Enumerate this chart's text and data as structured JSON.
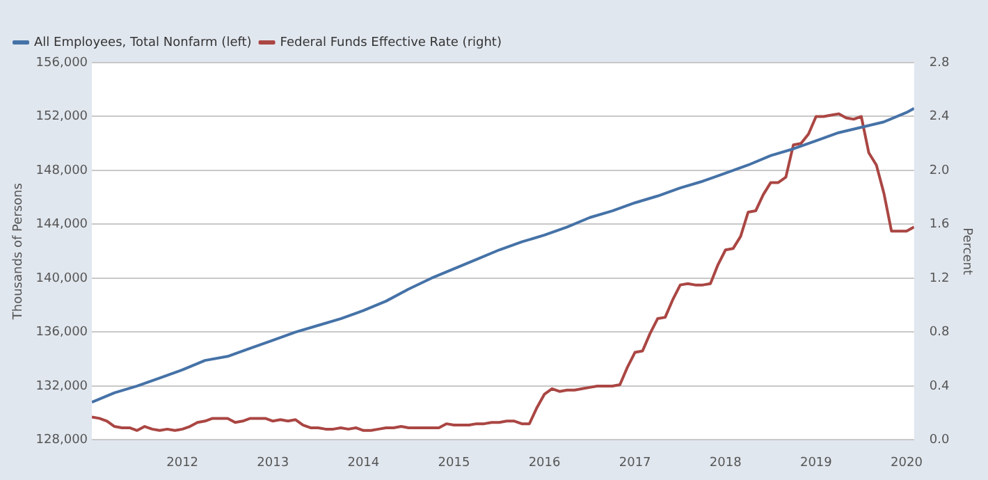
{
  "chart_data": {
    "type": "line",
    "ylabel": "Thousands of Persons",
    "y2label": "Percent",
    "xlim": [
      "2011-01",
      "2020-02"
    ],
    "xticks": [
      {
        "value": "2012",
        "label": "2012"
      },
      {
        "value": "2013",
        "label": "2013"
      },
      {
        "value": "2014",
        "label": "2014"
      },
      {
        "value": "2015",
        "label": "2015"
      },
      {
        "value": "2016",
        "label": "2016"
      },
      {
        "value": "2017",
        "label": "2017"
      },
      {
        "value": "2018",
        "label": "2018"
      },
      {
        "value": "2019",
        "label": "2019"
      },
      {
        "value": "2020",
        "label": "2020"
      }
    ],
    "ylim": [
      128000,
      156000
    ],
    "yticks": [
      {
        "value": 128000,
        "label": "128,000"
      },
      {
        "value": 132000,
        "label": "132,000"
      },
      {
        "value": 136000,
        "label": "136,000"
      },
      {
        "value": 140000,
        "label": "140,000"
      },
      {
        "value": 144000,
        "label": "144,000"
      },
      {
        "value": 148000,
        "label": "148,000"
      },
      {
        "value": 152000,
        "label": "152,000"
      },
      {
        "value": 156000,
        "label": "156,000"
      }
    ],
    "y2lim": [
      0,
      2.8
    ],
    "y2ticks": [
      {
        "value": 0,
        "label": "0.0"
      },
      {
        "value": 0.4,
        "label": "0.4"
      },
      {
        "value": 0.8,
        "label": "0.8"
      },
      {
        "value": 1.2,
        "label": "1.2"
      },
      {
        "value": 1.6,
        "label": "1.6"
      },
      {
        "value": 2.0,
        "label": "2.0"
      },
      {
        "value": 2.4,
        "label": "2.4"
      },
      {
        "value": 2.8,
        "label": "2.8"
      }
    ],
    "grid": "y",
    "legend": "top left",
    "marker": "none",
    "line_style": "solid",
    "series": [
      {
        "name": "All Employees, Total Nonfarm (left)",
        "color": "#4572a7",
        "x": [
          "2011-01",
          "2011-04",
          "2011-07",
          "2011-10",
          "2012-01",
          "2012-04",
          "2012-07",
          "2012-10",
          "2013-01",
          "2013-04",
          "2013-07",
          "2013-10",
          "2014-01",
          "2014-04",
          "2014-07",
          "2014-10",
          "2015-01",
          "2015-04",
          "2015-07",
          "2015-10",
          "2016-01",
          "2016-04",
          "2016-07",
          "2016-10",
          "2017-01",
          "2017-04",
          "2017-07",
          "2017-10",
          "2018-01",
          "2018-04",
          "2018-07",
          "2018-10",
          "2019-01",
          "2019-04",
          "2019-07",
          "2019-10",
          "2020-01",
          "2020-02"
        ],
        "values": [
          130800,
          131500,
          132000,
          132600,
          133200,
          133900,
          134200,
          134800,
          135400,
          136000,
          136500,
          137000,
          137600,
          138300,
          139200,
          140000,
          140700,
          141400,
          142100,
          142700,
          143200,
          143800,
          144500,
          145000,
          145600,
          146100,
          146700,
          147200,
          147800,
          148400,
          149100,
          149600,
          150200,
          150800,
          151200,
          151600,
          152300,
          152600
        ]
      },
      {
        "name": "Federal Funds Effective Rate (right)",
        "color": "#aa4643",
        "axis": "y2",
        "x": [
          "2011-01",
          "2011-02",
          "2011-03",
          "2011-04",
          "2011-05",
          "2011-06",
          "2011-07",
          "2011-08",
          "2011-09",
          "2011-10",
          "2011-11",
          "2011-12",
          "2012-01",
          "2012-02",
          "2012-03",
          "2012-04",
          "2012-05",
          "2012-06",
          "2012-07",
          "2012-08",
          "2012-09",
          "2012-10",
          "2012-11",
          "2012-12",
          "2013-01",
          "2013-02",
          "2013-03",
          "2013-04",
          "2013-05",
          "2013-06",
          "2013-07",
          "2013-08",
          "2013-09",
          "2013-10",
          "2013-11",
          "2013-12",
          "2014-01",
          "2014-02",
          "2014-03",
          "2014-04",
          "2014-05",
          "2014-06",
          "2014-07",
          "2014-08",
          "2014-09",
          "2014-10",
          "2014-11",
          "2014-12",
          "2015-01",
          "2015-02",
          "2015-03",
          "2015-04",
          "2015-05",
          "2015-06",
          "2015-07",
          "2015-08",
          "2015-09",
          "2015-10",
          "2015-11",
          "2015-12",
          "2016-01",
          "2016-02",
          "2016-03",
          "2016-04",
          "2016-05",
          "2016-06",
          "2016-07",
          "2016-08",
          "2016-09",
          "2016-10",
          "2016-11",
          "2016-12",
          "2017-01",
          "2017-02",
          "2017-03",
          "2017-04",
          "2017-05",
          "2017-06",
          "2017-07",
          "2017-08",
          "2017-09",
          "2017-10",
          "2017-11",
          "2017-12",
          "2018-01",
          "2018-02",
          "2018-03",
          "2018-04",
          "2018-05",
          "2018-06",
          "2018-07",
          "2018-08",
          "2018-09",
          "2018-10",
          "2018-11",
          "2018-12",
          "2019-01",
          "2019-02",
          "2019-03",
          "2019-04",
          "2019-05",
          "2019-06",
          "2019-07",
          "2019-08",
          "2019-09",
          "2019-10",
          "2019-11",
          "2019-12",
          "2020-01",
          "2020-02"
        ],
        "values": [
          0.17,
          0.16,
          0.14,
          0.1,
          0.09,
          0.09,
          0.07,
          0.1,
          0.08,
          0.07,
          0.08,
          0.07,
          0.08,
          0.1,
          0.13,
          0.14,
          0.16,
          0.16,
          0.16,
          0.13,
          0.14,
          0.16,
          0.16,
          0.16,
          0.14,
          0.15,
          0.14,
          0.15,
          0.11,
          0.09,
          0.09,
          0.08,
          0.08,
          0.09,
          0.08,
          0.09,
          0.07,
          0.07,
          0.08,
          0.09,
          0.09,
          0.1,
          0.09,
          0.09,
          0.09,
          0.09,
          0.09,
          0.12,
          0.11,
          0.11,
          0.11,
          0.12,
          0.12,
          0.13,
          0.13,
          0.14,
          0.14,
          0.12,
          0.12,
          0.24,
          0.34,
          0.38,
          0.36,
          0.37,
          0.37,
          0.38,
          0.39,
          0.4,
          0.4,
          0.4,
          0.41,
          0.54,
          0.65,
          0.66,
          0.79,
          0.9,
          0.91,
          1.04,
          1.15,
          1.16,
          1.15,
          1.15,
          1.16,
          1.3,
          1.41,
          1.42,
          1.51,
          1.69,
          1.7,
          1.82,
          1.91,
          1.91,
          1.95,
          2.19,
          2.2,
          2.27,
          2.4,
          2.4,
          2.41,
          2.42,
          2.39,
          2.38,
          2.4,
          2.13,
          2.04,
          1.83,
          1.55,
          1.55,
          1.55,
          1.58
        ]
      }
    ]
  }
}
